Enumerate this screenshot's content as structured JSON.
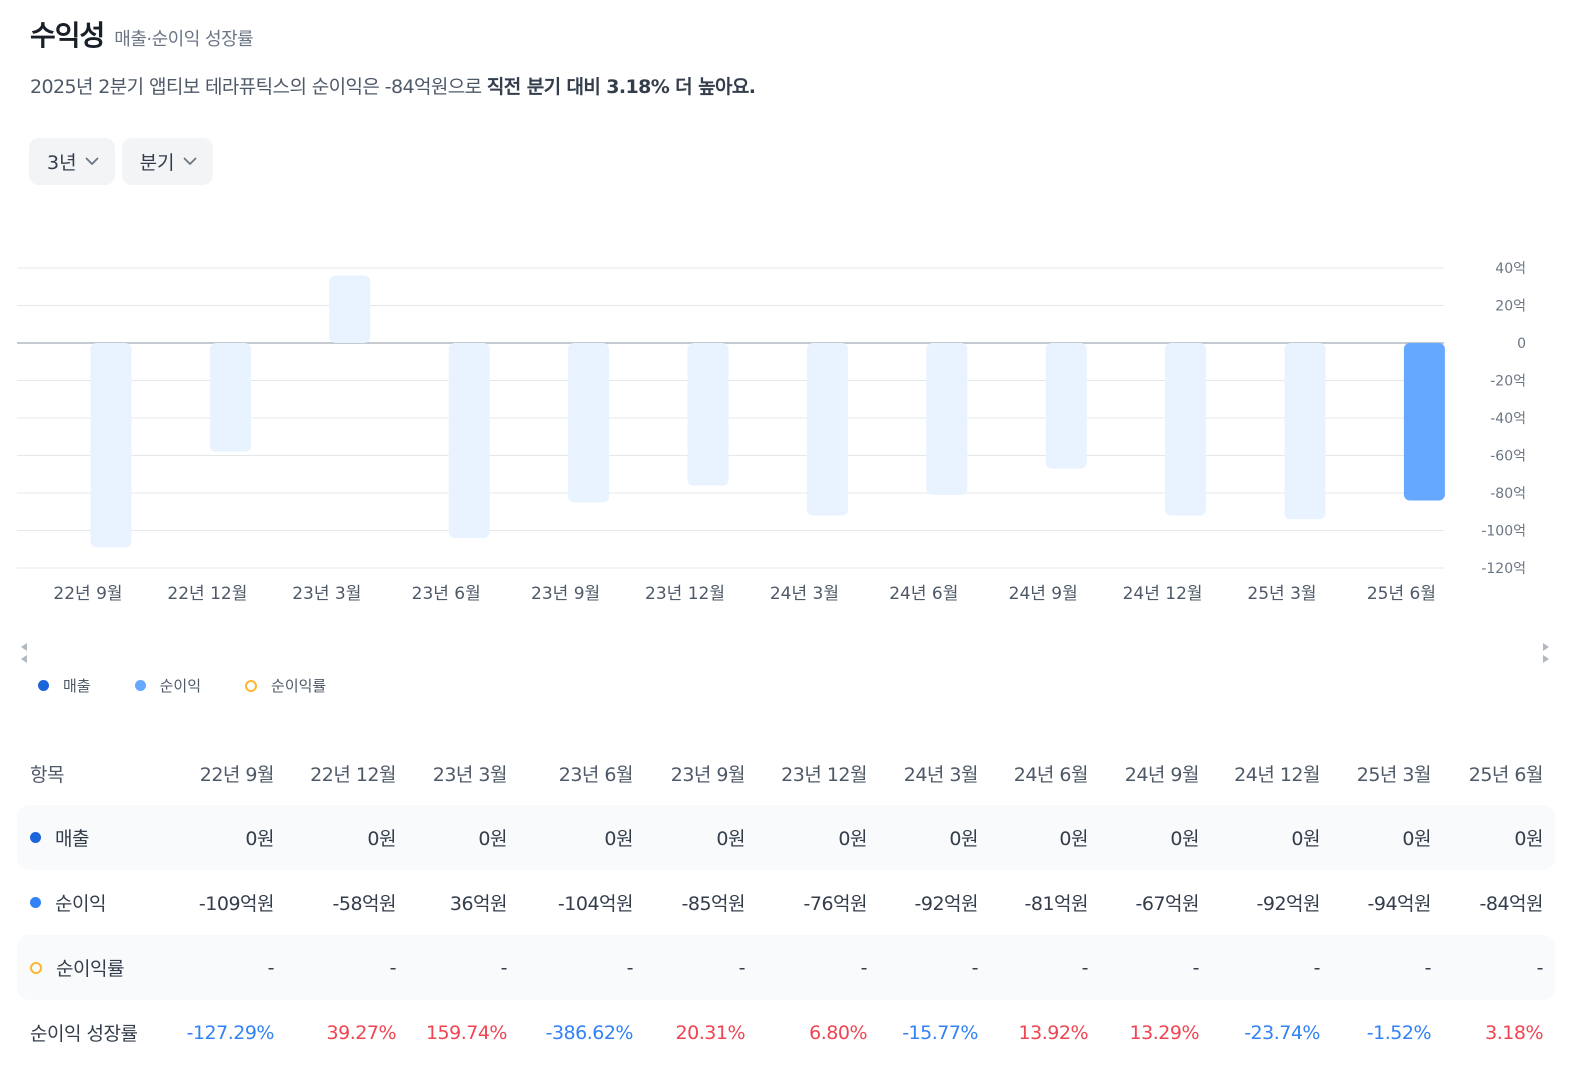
{
  "header": {
    "title": "수익성",
    "subtitle": "매출·순이익 성장률"
  },
  "summary": {
    "prefix": "2025년 2분기 앱티보 테라퓨틱스의 순이익은 -84억원으로 ",
    "emphasis": "직전 분기 대비 3.18% 더 높아요."
  },
  "filters": {
    "period": "3년",
    "interval": "분기",
    "icon": "chevron-down-icon"
  },
  "legend": [
    {
      "label": "매출",
      "color": "#1b64da",
      "style": "dot"
    },
    {
      "label": "순이익",
      "color": "#64a8ff",
      "style": "dot"
    },
    {
      "label": "순이익률",
      "color": "#fdb532",
      "style": "ring"
    }
  ],
  "colors": {
    "bar_past": "#e8f3ff",
    "bar_current": "#64a8ff",
    "revenue": "#1b64da",
    "net_income": "#3182f6",
    "margin": "#fdb532",
    "positive": "#f04452",
    "negative": "#3182f6"
  },
  "chart_data": {
    "type": "bar",
    "categories": [
      "22년 9월",
      "22년 12월",
      "23년 3월",
      "23년 6월",
      "23년 9월",
      "23년 12월",
      "24년 3월",
      "24년 6월",
      "24년 9월",
      "24년 12월",
      "25년 3월",
      "25년 6월"
    ],
    "series": [
      {
        "name": "순이익",
        "values": [
          -109,
          -58,
          36,
          -104,
          -85,
          -76,
          -92,
          -81,
          -67,
          -92,
          -94,
          -84
        ]
      }
    ],
    "y_ticks": [
      "40억",
      "20억",
      "0",
      "-20억",
      "-40억",
      "-60억",
      "-80억",
      "-100억",
      "-120억"
    ],
    "ylim": [
      -120,
      40
    ],
    "highlight_index": 11,
    "grid": true,
    "legend": "bottom-left"
  },
  "table": {
    "header_label": "항목",
    "columns": [
      "22년 9월",
      "22년 12월",
      "23년 3월",
      "23년 6월",
      "23년 9월",
      "23년 12월",
      "24년 3월",
      "24년 6월",
      "24년 9월",
      "24년 12월",
      "25년 3월",
      "25년 6월"
    ],
    "rows": [
      {
        "label": "매출",
        "marker": "dot",
        "color": "#1b64da",
        "values": [
          "0원",
          "0원",
          "0원",
          "0원",
          "0원",
          "0원",
          "0원",
          "0원",
          "0원",
          "0원",
          "0원",
          "0원"
        ]
      },
      {
        "label": "순이익",
        "marker": "dot",
        "color": "#3182f6",
        "values": [
          "-109억원",
          "-58억원",
          "36억원",
          "-104억원",
          "-85억원",
          "-76억원",
          "-92억원",
          "-81억원",
          "-67억원",
          "-92억원",
          "-94억원",
          "-84억원"
        ]
      },
      {
        "label": "순이익률",
        "marker": "ring",
        "color": "#fdb532",
        "values": [
          "-",
          "-",
          "-",
          "-",
          "-",
          "-",
          "-",
          "-",
          "-",
          "-",
          "-",
          "-"
        ]
      },
      {
        "label": "순이익 성장률",
        "marker": "none",
        "color": "",
        "values": [
          "-127.29%",
          "39.27%",
          "159.74%",
          "-386.62%",
          "20.31%",
          "6.80%",
          "-15.77%",
          "13.92%",
          "13.29%",
          "-23.74%",
          "-1.52%",
          "3.18%"
        ]
      }
    ]
  }
}
